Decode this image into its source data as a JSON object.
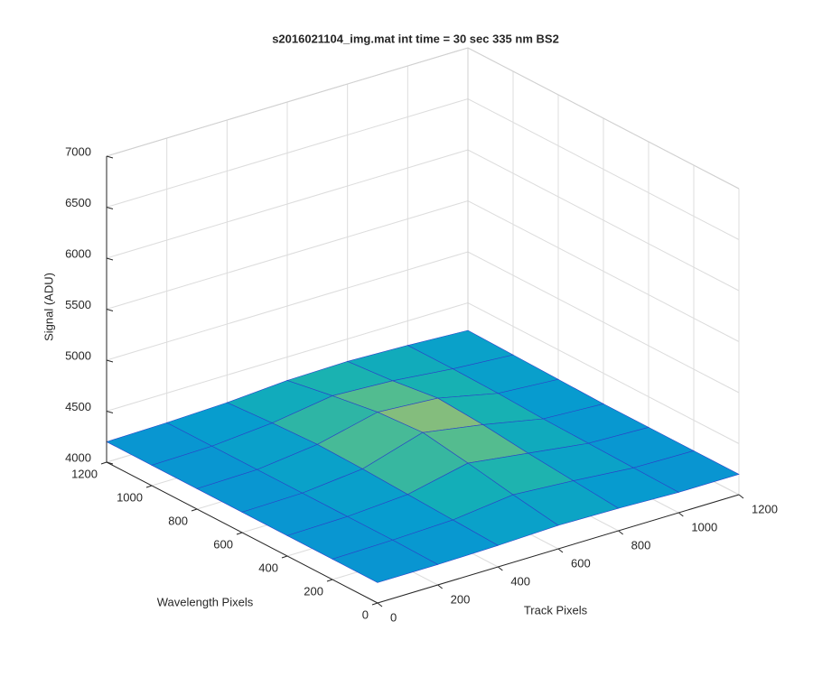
{
  "chart_data": {
    "type": "surface",
    "title": "s2016021104_img.mat int time = 30 sec  335 nm BS2",
    "xlabel": "Track Pixels",
    "ylabel": "Wavelength Pixels",
    "zlabel": "Signal (ADU)",
    "x": [
      0,
      200,
      400,
      600,
      800,
      1000,
      1200
    ],
    "y": [
      0,
      200,
      400,
      600,
      800,
      1000,
      1200
    ],
    "z": [
      [
        4200,
        4200,
        4210,
        4230,
        4220,
        4200,
        4200
      ],
      [
        4200,
        4210,
        4230,
        4300,
        4260,
        4210,
        4200
      ],
      [
        4200,
        4210,
        4250,
        4380,
        4300,
        4220,
        4200
      ],
      [
        4200,
        4210,
        4270,
        4450,
        4350,
        4230,
        4200
      ],
      [
        4200,
        4210,
        4280,
        4420,
        4380,
        4250,
        4210
      ],
      [
        4200,
        4210,
        4260,
        4350,
        4320,
        4260,
        4220
      ],
      [
        4200,
        4210,
        4230,
        4270,
        4280,
        4260,
        4230
      ]
    ],
    "xlim": [
      0,
      1200
    ],
    "xticks": [
      0,
      200,
      400,
      600,
      800,
      1000,
      1200
    ],
    "ylim": [
      0,
      1200
    ],
    "yticks": [
      0,
      200,
      400,
      600,
      800,
      1000,
      1200
    ],
    "zlim": [
      4000,
      7000
    ],
    "zticks": [
      4000,
      4500,
      5000,
      5500,
      6000,
      6500,
      7000
    ],
    "grid": true
  }
}
